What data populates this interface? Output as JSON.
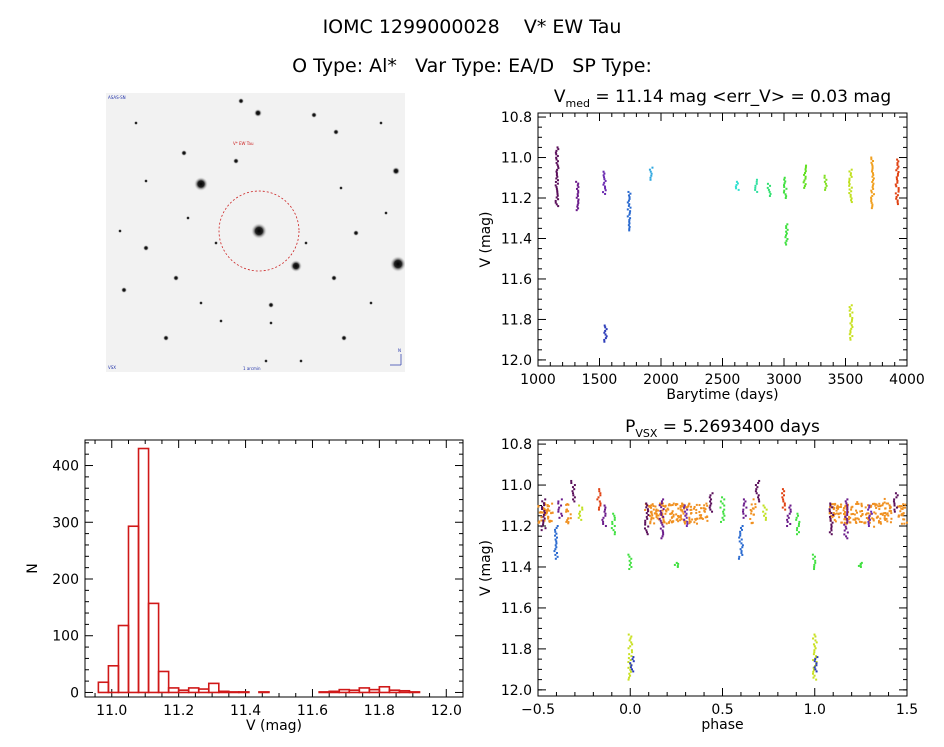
{
  "header": {
    "title_line1": "IOMC 1299000028    V* EW Tau",
    "title_line2": "O Type: Al*   Var Type: EA/D   SP Type:"
  },
  "finder": {
    "label_top_left": "ASAS-SN",
    "label_target": "V* EW Tau",
    "label_bottom_left": "VSX",
    "label_bottom_center": "1 arcmin",
    "label_compass": "N"
  },
  "chart_data": [
    {
      "type": "scatter",
      "title_main": "V",
      "title_sub": "med",
      "title_rest": " = 11.14 mag <err_V> = 0.03 mag",
      "xlabel": "Barytime (days)",
      "ylabel": "V (mag)",
      "xlim": [
        1000,
        4000
      ],
      "ylim": [
        12.03,
        10.78
      ],
      "xticks": [
        "1000",
        "1500",
        "2000",
        "2500",
        "3000",
        "3500",
        "4000"
      ],
      "yticks": [
        "10.8",
        "11.0",
        "11.2",
        "11.4",
        "11.6",
        "11.8",
        "12.0"
      ],
      "grid": false,
      "clusters": [
        {
          "x": 1155,
          "ymin": 10.95,
          "ymax": 11.24,
          "color": "#5a0f5a"
        },
        {
          "x": 1320,
          "ymin": 11.12,
          "ymax": 11.26,
          "color": "#6a1a8a"
        },
        {
          "x": 1540,
          "ymin": 11.07,
          "ymax": 11.18,
          "color": "#6a2ab0"
        },
        {
          "x": 1550,
          "ymin": 11.83,
          "ymax": 11.91,
          "color": "#2a3ab8"
        },
        {
          "x": 1740,
          "ymin": 11.17,
          "ymax": 11.36,
          "color": "#2a6ad0"
        },
        {
          "x": 1920,
          "ymin": 11.05,
          "ymax": 11.11,
          "color": "#30a8e0"
        },
        {
          "x": 2620,
          "ymin": 11.12,
          "ymax": 11.16,
          "color": "#30e0d0"
        },
        {
          "x": 2770,
          "ymin": 11.11,
          "ymax": 11.17,
          "color": "#30e0a0"
        },
        {
          "x": 2880,
          "ymin": 11.13,
          "ymax": 11.19,
          "color": "#30e070"
        },
        {
          "x": 3010,
          "ymin": 11.1,
          "ymax": 11.2,
          "color": "#40e040"
        },
        {
          "x": 3020,
          "ymin": 11.33,
          "ymax": 11.43,
          "color": "#40e040"
        },
        {
          "x": 3170,
          "ymin": 11.04,
          "ymax": 11.15,
          "color": "#60e020"
        },
        {
          "x": 3340,
          "ymin": 11.09,
          "ymax": 11.16,
          "color": "#80e020"
        },
        {
          "x": 3540,
          "ymin": 11.06,
          "ymax": 11.22,
          "color": "#c0e020"
        },
        {
          "x": 3545,
          "ymin": 11.73,
          "ymax": 11.9,
          "color": "#c8e020"
        },
        {
          "x": 3720,
          "ymin": 11.0,
          "ymax": 11.25,
          "color": "#f0a020"
        },
        {
          "x": 3920,
          "ymin": 11.01,
          "ymax": 11.23,
          "color": "#e04010"
        }
      ]
    },
    {
      "type": "bar",
      "xlabel": "V (mag)",
      "ylabel": "N",
      "xlim": [
        10.92,
        12.05
      ],
      "ylim": [
        -8,
        445
      ],
      "xticks": [
        "11.0",
        "11.2",
        "11.4",
        "11.6",
        "11.8",
        "12.0"
      ],
      "yticks": [
        "0",
        "100",
        "200",
        "300",
        "400"
      ],
      "bin_width": 0.03,
      "bins": [
        {
          "x": 10.96,
          "n": 18
        },
        {
          "x": 10.99,
          "n": 47
        },
        {
          "x": 11.02,
          "n": 118
        },
        {
          "x": 11.05,
          "n": 293
        },
        {
          "x": 11.08,
          "n": 430
        },
        {
          "x": 11.11,
          "n": 157
        },
        {
          "x": 11.14,
          "n": 37
        },
        {
          "x": 11.17,
          "n": 8
        },
        {
          "x": 11.2,
          "n": 4
        },
        {
          "x": 11.23,
          "n": 8
        },
        {
          "x": 11.26,
          "n": 6
        },
        {
          "x": 11.29,
          "n": 16
        },
        {
          "x": 11.32,
          "n": 2
        },
        {
          "x": 11.35,
          "n": 1
        },
        {
          "x": 11.38,
          "n": 1
        },
        {
          "x": 11.41,
          "n": 0
        },
        {
          "x": 11.44,
          "n": 1
        },
        {
          "x": 11.47,
          "n": 0
        },
        {
          "x": 11.5,
          "n": 0
        },
        {
          "x": 11.53,
          "n": 0
        },
        {
          "x": 11.56,
          "n": 0
        },
        {
          "x": 11.59,
          "n": 0
        },
        {
          "x": 11.62,
          "n": 1
        },
        {
          "x": 11.65,
          "n": 2
        },
        {
          "x": 11.68,
          "n": 5
        },
        {
          "x": 11.71,
          "n": 4
        },
        {
          "x": 11.74,
          "n": 8
        },
        {
          "x": 11.77,
          "n": 5
        },
        {
          "x": 11.8,
          "n": 10
        },
        {
          "x": 11.83,
          "n": 4
        },
        {
          "x": 11.86,
          "n": 3
        },
        {
          "x": 11.89,
          "n": 1
        }
      ]
    },
    {
      "type": "scatter",
      "title_main": "P",
      "title_sub": "VSX",
      "title_rest": " = 5.2693400 days",
      "xlabel": "phase",
      "ylabel": "V (mag)",
      "xlim": [
        -0.5,
        1.5
      ],
      "ylim": [
        12.03,
        10.78
      ],
      "xticks": [
        "−0.5",
        "0.0",
        "0.5",
        "1.0",
        "1.5"
      ],
      "yticks": [
        "10.8",
        "11.0",
        "11.2",
        "11.4",
        "11.6",
        "11.8",
        "12.0"
      ],
      "grid": false,
      "baseline": {
        "mag": 11.14,
        "spread": 0.05,
        "color": "#f09020"
      },
      "clusters": [
        {
          "x": -0.47,
          "ymin": 11.07,
          "ymax": 11.22,
          "color": "#5a0f5a"
        },
        {
          "x": -0.4,
          "ymin": 11.2,
          "ymax": 11.36,
          "color": "#2a6ad0"
        },
        {
          "x": -0.38,
          "ymin": 11.07,
          "ymax": 11.16,
          "color": "#6a1a8a"
        },
        {
          "x": -0.31,
          "ymin": 10.98,
          "ymax": 11.08,
          "color": "#5a0f5a"
        },
        {
          "x": -0.27,
          "ymin": 11.1,
          "ymax": 11.17,
          "color": "#c0e020"
        },
        {
          "x": -0.17,
          "ymin": 11.02,
          "ymax": 11.12,
          "color": "#e04010"
        },
        {
          "x": -0.14,
          "ymin": 11.1,
          "ymax": 11.2,
          "color": "#6a1a8a"
        },
        {
          "x": -0.09,
          "ymin": 11.14,
          "ymax": 11.24,
          "color": "#40e040"
        },
        {
          "x": 0.0,
          "ymin": 11.34,
          "ymax": 11.41,
          "color": "#40e040"
        },
        {
          "x": 0.0,
          "ymin": 11.73,
          "ymax": 11.95,
          "color": "#c8e020"
        },
        {
          "x": 0.01,
          "ymin": 11.84,
          "ymax": 11.91,
          "color": "#2a3ab8"
        },
        {
          "x": 0.09,
          "ymin": 11.09,
          "ymax": 11.24,
          "color": "#5a0f5a"
        },
        {
          "x": 0.17,
          "ymin": 11.07,
          "ymax": 11.26,
          "color": "#6a1a8a"
        },
        {
          "x": 0.25,
          "ymin": 11.38,
          "ymax": 11.4,
          "color": "#40e040"
        },
        {
          "x": 0.3,
          "ymin": 11.1,
          "ymax": 11.2,
          "color": "#6a2ab0"
        },
        {
          "x": 0.44,
          "ymin": 11.04,
          "ymax": 11.13,
          "color": "#5a0f5a"
        },
        {
          "x": 0.5,
          "ymin": 11.06,
          "ymax": 11.18,
          "color": "#40e040"
        },
        {
          "x": 0.6,
          "ymin": 11.2,
          "ymax": 11.36,
          "color": "#2a6ad0"
        },
        {
          "x": 0.62,
          "ymin": 11.07,
          "ymax": 11.16,
          "color": "#6a1a8a"
        },
        {
          "x": 0.69,
          "ymin": 10.98,
          "ymax": 11.08,
          "color": "#5a0f5a"
        },
        {
          "x": 0.73,
          "ymin": 11.1,
          "ymax": 11.17,
          "color": "#c0e020"
        },
        {
          "x": 0.83,
          "ymin": 11.02,
          "ymax": 11.12,
          "color": "#e04010"
        },
        {
          "x": 0.86,
          "ymin": 11.1,
          "ymax": 11.2,
          "color": "#6a1a8a"
        },
        {
          "x": 0.91,
          "ymin": 11.14,
          "ymax": 11.24,
          "color": "#40e040"
        },
        {
          "x": 1.0,
          "ymin": 11.34,
          "ymax": 11.41,
          "color": "#40e040"
        },
        {
          "x": 1.0,
          "ymin": 11.73,
          "ymax": 11.95,
          "color": "#c8e020"
        },
        {
          "x": 1.01,
          "ymin": 11.84,
          "ymax": 11.91,
          "color": "#2a3ab8"
        },
        {
          "x": 1.09,
          "ymin": 11.09,
          "ymax": 11.24,
          "color": "#5a0f5a"
        },
        {
          "x": 1.17,
          "ymin": 11.07,
          "ymax": 11.26,
          "color": "#6a1a8a"
        },
        {
          "x": 1.25,
          "ymin": 11.38,
          "ymax": 11.4,
          "color": "#40e040"
        },
        {
          "x": 1.3,
          "ymin": 11.1,
          "ymax": 11.2,
          "color": "#6a2ab0"
        },
        {
          "x": 1.44,
          "ymin": 11.04,
          "ymax": 11.13,
          "color": "#5a0f5a"
        }
      ]
    }
  ]
}
